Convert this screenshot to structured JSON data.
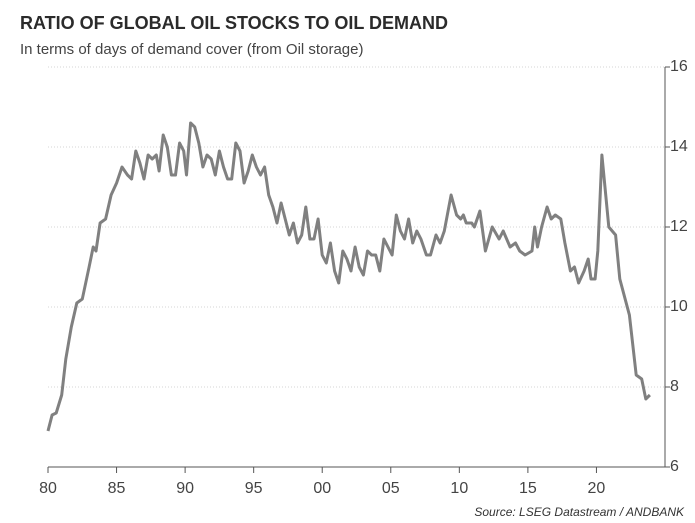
{
  "chart_data": {
    "type": "line",
    "title": "RATIO OF GLOBAL OIL STOCKS TO OIL DEMAND",
    "subtitle": "In terms of days of demand cover (from Oil storage)",
    "source": "Source: LSEG Datastream / ANDBANK",
    "color": "#808080",
    "grid": true,
    "xlim": [
      1980,
      2025
    ],
    "ylim": [
      6,
      16
    ],
    "yticks": [
      6,
      8,
      10,
      12,
      14,
      16
    ],
    "xticks": [
      {
        "value": 1980,
        "label": "80"
      },
      {
        "value": 1985,
        "label": "85"
      },
      {
        "value": 1990,
        "label": "90"
      },
      {
        "value": 1995,
        "label": "95"
      },
      {
        "value": 2000,
        "label": "00"
      },
      {
        "value": 2005,
        "label": "05"
      },
      {
        "value": 2010,
        "label": "10"
      },
      {
        "value": 2015,
        "label": "15"
      },
      {
        "value": 2020,
        "label": "20"
      }
    ],
    "x": [
      1980.0,
      1980.3,
      1980.6,
      1981.0,
      1981.3,
      1981.7,
      1982.1,
      1982.5,
      1983.0,
      1983.3,
      1983.5,
      1983.8,
      1984.2,
      1984.6,
      1985.0,
      1985.4,
      1985.8,
      1986.1,
      1986.4,
      1986.7,
      1987.0,
      1987.3,
      1987.6,
      1987.9,
      1988.1,
      1988.4,
      1988.7,
      1989.0,
      1989.3,
      1989.6,
      1989.9,
      1990.1,
      1990.4,
      1990.7,
      1991.0,
      1991.3,
      1991.6,
      1991.9,
      1992.2,
      1992.5,
      1992.8,
      1993.1,
      1993.4,
      1993.7,
      1994.0,
      1994.3,
      1994.6,
      1994.9,
      1995.2,
      1995.5,
      1995.8,
      1996.1,
      1996.4,
      1996.7,
      1997.0,
      1997.3,
      1997.6,
      1997.9,
      1998.2,
      1998.5,
      1998.8,
      1999.1,
      1999.4,
      1999.7,
      2000.0,
      2000.3,
      2000.6,
      2000.9,
      2001.2,
      2001.5,
      2001.8,
      2002.1,
      2002.4,
      2002.7,
      2003.0,
      2003.3,
      2003.6,
      2003.9,
      2004.2,
      2004.5,
      2004.8,
      2005.1,
      2005.4,
      2005.7,
      2006.0,
      2006.3,
      2006.6,
      2006.9,
      2007.2,
      2007.6,
      2007.9,
      2008.3,
      2008.6,
      2008.9,
      2009.4,
      2009.8,
      2010.1,
      2010.3,
      2010.5,
      2010.9,
      2011.1,
      2011.5,
      2011.9,
      2012.4,
      2012.9,
      2013.2,
      2013.7,
      2014.1,
      2014.4,
      2014.8,
      2015.3,
      2015.5,
      2015.7,
      2016.0,
      2016.4,
      2016.7,
      2017.0,
      2017.4,
      2017.7,
      2018.1,
      2018.4,
      2018.7,
      2019.1,
      2019.4,
      2019.6,
      2019.9,
      2020.1,
      2020.4,
      2020.9,
      2021.4,
      2021.7,
      2022.4,
      2022.9,
      2023.3,
      2023.6,
      2023.9
    ],
    "values": [
      6.9,
      7.3,
      7.35,
      7.8,
      8.7,
      9.5,
      10.1,
      10.2,
      11.0,
      11.5,
      11.4,
      12.1,
      12.2,
      12.8,
      13.1,
      13.5,
      13.3,
      13.2,
      13.9,
      13.6,
      13.2,
      13.8,
      13.7,
      13.8,
      13.4,
      14.3,
      14.0,
      13.3,
      13.3,
      14.1,
      13.9,
      13.3,
      14.6,
      14.5,
      14.1,
      13.5,
      13.8,
      13.7,
      13.3,
      13.9,
      13.5,
      13.2,
      13.2,
      14.1,
      13.9,
      13.1,
      13.4,
      13.8,
      13.5,
      13.3,
      13.5,
      12.8,
      12.5,
      12.1,
      12.6,
      12.2,
      11.8,
      12.1,
      11.6,
      11.8,
      12.5,
      11.7,
      11.7,
      12.2,
      11.3,
      11.1,
      11.6,
      10.9,
      10.6,
      11.4,
      11.2,
      10.9,
      11.5,
      11.0,
      10.8,
      11.4,
      11.3,
      11.3,
      10.9,
      11.7,
      11.5,
      11.3,
      12.3,
      11.9,
      11.7,
      12.2,
      11.6,
      11.9,
      11.7,
      11.3,
      11.3,
      11.8,
      11.6,
      11.9,
      12.8,
      12.3,
      12.2,
      12.3,
      12.1,
      12.1,
      12.0,
      12.4,
      11.4,
      12.0,
      11.7,
      11.9,
      11.5,
      11.6,
      11.4,
      11.3,
      11.4,
      12.0,
      11.5,
      12.0,
      12.5,
      12.2,
      12.3,
      12.2,
      11.6,
      10.9,
      11.0,
      10.6,
      10.9,
      11.2,
      10.7,
      10.7,
      11.4,
      13.8,
      12.0,
      11.8,
      10.7,
      9.8,
      8.3,
      8.2,
      7.7,
      7.8
    ]
  }
}
